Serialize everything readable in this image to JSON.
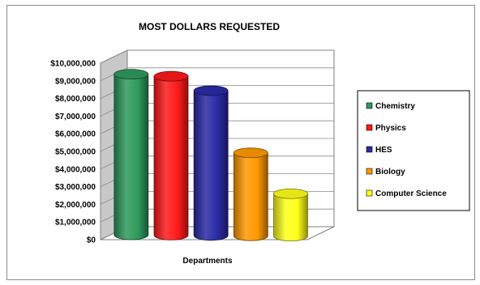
{
  "chart_data": {
    "type": "bar",
    "title": "MOST DOLLARS REQUESTED",
    "xlabel": "Departments",
    "ylabel": "",
    "ylim": [
      0,
      10000000
    ],
    "yticks": [
      0,
      1000000,
      2000000,
      3000000,
      4000000,
      5000000,
      6000000,
      7000000,
      8000000,
      9000000,
      10000000
    ],
    "ytick_labels": [
      "$0",
      "$1,000,000",
      "$2,000,000",
      "$3,000,000",
      "$4,000,000",
      "$5,000,000",
      "$6,000,000",
      "$7,000,000",
      "$8,000,000",
      "$9,000,000",
      "$10,000,000"
    ],
    "grid": true,
    "legend_position": "right",
    "series": [
      {
        "name": "Chemistry",
        "value": 9100000,
        "color": "#2e9a5c"
      },
      {
        "name": "Physics",
        "value": 9000000,
        "color": "#ff1a1a"
      },
      {
        "name": "HES",
        "value": 8200000,
        "color": "#2a2aa6"
      },
      {
        "name": "Biology",
        "value": 4700000,
        "color": "#ff9900"
      },
      {
        "name": "Computer Science",
        "value": 2400000,
        "color": "#ffff1a"
      }
    ]
  }
}
